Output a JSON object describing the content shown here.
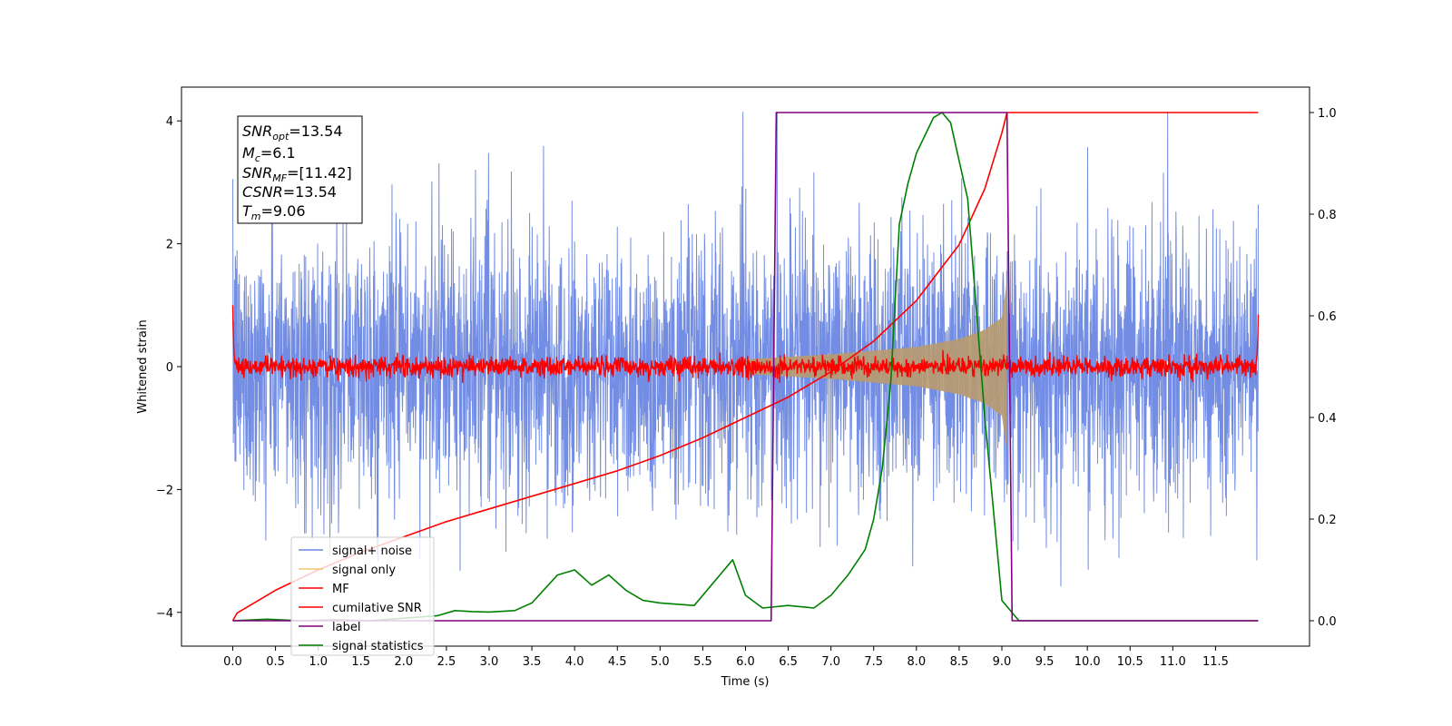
{
  "chart_data": {
    "type": "line",
    "xlabel": "Time (s)",
    "ylabel_left": "Whitened strain",
    "xlim": [
      -0.6,
      12.6
    ],
    "ylim_left": [
      -4.55,
      4.55
    ],
    "ylim_right": [
      -0.05,
      1.05
    ],
    "x_ticks": [
      "0.0",
      "0.5",
      "1.0",
      "1.5",
      "2.0",
      "2.5",
      "3.0",
      "3.5",
      "4.0",
      "4.5",
      "5.0",
      "5.5",
      "6.0",
      "6.5",
      "7.0",
      "7.5",
      "8.0",
      "8.5",
      "9.0",
      "9.5",
      "10.0",
      "10.5",
      "11.0",
      "11.5"
    ],
    "y_ticks_left": [
      "4",
      "2",
      "0",
      "−2",
      "−4"
    ],
    "y_ticks_right": [
      "1.0",
      "0.8",
      "0.6",
      "0.4",
      "0.2",
      "0.0"
    ],
    "legend_position": "lower-left",
    "info_box": {
      "snr_opt_base": "SNR",
      "snr_opt_sub": "opt",
      "snr_opt_value": "=13.54",
      "mc_base": "M",
      "mc_sub": "c",
      "mc_value": "=6.1",
      "snr_mf_base": "SNR",
      "snr_mf_sub": "MF",
      "snr_mf_value": "=[11.42]",
      "csnr_base": "CSNR",
      "csnr_value": "=13.54",
      "tm_base": "T",
      "tm_sub": "m",
      "tm_value": "=9.06"
    },
    "series": [
      {
        "name": "signal+ noise",
        "color": "#6a87e2",
        "axis": "left",
        "description_values": {
          "mean": 0.0,
          "std": 1.1,
          "x_range": [
            0.0,
            12.0
          ]
        }
      },
      {
        "name": "signal only",
        "color": "#f5c36b",
        "axis": "left",
        "envelope": {
          "x": [
            6.0,
            7.0,
            8.0,
            8.5,
            8.8,
            9.0,
            9.06
          ],
          "amplitude": [
            0.12,
            0.2,
            0.32,
            0.45,
            0.6,
            0.8,
            1.4
          ]
        }
      },
      {
        "name": "MF",
        "color": "#ff0000",
        "axis": "left",
        "description_values": {
          "mean": 0.0,
          "std": 0.08,
          "x_range": [
            0.0,
            12.0
          ]
        }
      },
      {
        "name": "cumilative SNR",
        "color": "#ff0000",
        "axis": "right",
        "x": [
          0.0,
          0.05,
          0.5,
          1.0,
          1.5,
          2.0,
          2.5,
          3.0,
          3.5,
          4.0,
          4.5,
          5.0,
          5.5,
          6.0,
          6.5,
          7.0,
          7.5,
          8.0,
          8.5,
          8.8,
          9.0,
          9.06,
          12.0
        ],
        "y": [
          0.0,
          0.015,
          0.06,
          0.1,
          0.135,
          0.165,
          0.195,
          0.22,
          0.245,
          0.27,
          0.295,
          0.325,
          0.36,
          0.4,
          0.44,
          0.49,
          0.55,
          0.63,
          0.74,
          0.85,
          0.96,
          1.0,
          1.0
        ]
      },
      {
        "name": "label",
        "color": "#800080",
        "axis": "right",
        "x": [
          0.0,
          6.3,
          6.36,
          9.06,
          9.12,
          12.0
        ],
        "y": [
          0.0,
          0.0,
          1.0,
          1.0,
          0.0,
          0.0
        ]
      },
      {
        "name": "signal statistics",
        "color": "#008000",
        "axis": "right",
        "x": [
          0.0,
          0.4,
          0.8,
          1.2,
          1.6,
          2.0,
          2.4,
          2.6,
          2.8,
          3.0,
          3.3,
          3.5,
          3.8,
          4.0,
          4.2,
          4.4,
          4.6,
          4.8,
          5.0,
          5.4,
          5.7,
          5.85,
          6.0,
          6.2,
          6.5,
          6.8,
          7.0,
          7.2,
          7.4,
          7.5,
          7.6,
          7.7,
          7.8,
          7.9,
          8.0,
          8.2,
          8.3,
          8.4,
          8.6,
          8.8,
          9.0,
          9.2,
          12.0
        ],
        "y": [
          0.0,
          0.003,
          0.0,
          0.002,
          0.0,
          0.005,
          0.01,
          0.02,
          0.018,
          0.017,
          0.02,
          0.035,
          0.09,
          0.1,
          0.07,
          0.09,
          0.06,
          0.04,
          0.035,
          0.03,
          0.09,
          0.12,
          0.05,
          0.025,
          0.03,
          0.025,
          0.05,
          0.09,
          0.14,
          0.2,
          0.3,
          0.47,
          0.78,
          0.86,
          0.92,
          0.99,
          1.0,
          0.98,
          0.83,
          0.4,
          0.04,
          0.0,
          0.0
        ]
      }
    ]
  }
}
